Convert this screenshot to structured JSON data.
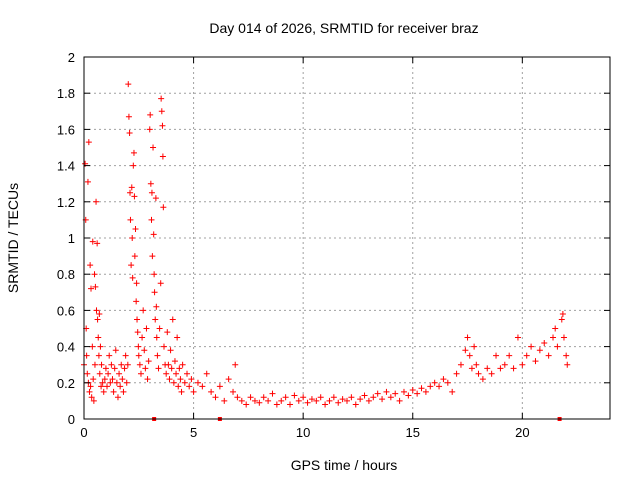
{
  "chart_data": {
    "type": "scatter",
    "title": "Day 014 of 2026, SRMTID for receiver braz",
    "xlabel": "GPS time / hours",
    "ylabel": "SRMTID / TECUs",
    "xlim": [
      0,
      24
    ],
    "ylim": [
      0,
      2
    ],
    "x_ticks": [
      0,
      5,
      10,
      15,
      20
    ],
    "x_tick_labels": [
      "0",
      "5",
      "10",
      "15",
      "20"
    ],
    "y_ticks": [
      0,
      0.2,
      0.4,
      0.6,
      0.8,
      1,
      1.2,
      1.4,
      1.6,
      1.8,
      2
    ],
    "y_tick_labels": [
      "0",
      "0.2",
      "0.4",
      "0.6",
      "0.8",
      "1",
      "1.2",
      "1.4",
      "1.6",
      "1.8",
      "2"
    ],
    "grid": true,
    "marker": "+",
    "series_color": "#ff0000",
    "series": [
      {
        "name": "SRMTID",
        "points": [
          [
            0.0,
            0.3
          ],
          [
            0.05,
            1.41
          ],
          [
            0.08,
            1.1
          ],
          [
            0.1,
            0.5
          ],
          [
            0.12,
            0.35
          ],
          [
            0.15,
            0.25
          ],
          [
            0.18,
            1.31
          ],
          [
            0.2,
            0.2
          ],
          [
            0.22,
            1.53
          ],
          [
            0.25,
            0.15
          ],
          [
            0.28,
            0.85
          ],
          [
            0.3,
            0.18
          ],
          [
            0.32,
            0.72
          ],
          [
            0.35,
            0.12
          ],
          [
            0.38,
            0.4
          ],
          [
            0.4,
            0.98
          ],
          [
            0.42,
            0.22
          ],
          [
            0.45,
            0.1
          ],
          [
            0.48,
            0.8
          ],
          [
            0.5,
            0.3
          ],
          [
            0.52,
            0.73
          ],
          [
            0.55,
            1.2
          ],
          [
            0.57,
            0.6
          ],
          [
            0.6,
            0.97
          ],
          [
            0.62,
            0.55
          ],
          [
            0.65,
            0.45
          ],
          [
            0.68,
            0.35
          ],
          [
            0.7,
            0.58
          ],
          [
            0.72,
            0.25
          ],
          [
            0.75,
            0.4
          ],
          [
            0.78,
            0.18
          ],
          [
            0.8,
            0.3
          ],
          [
            0.85,
            0.2
          ],
          [
            0.9,
            0.15
          ],
          [
            0.95,
            0.22
          ],
          [
            1.0,
            0.28
          ],
          [
            1.05,
            0.18
          ],
          [
            1.1,
            0.25
          ],
          [
            1.15,
            0.35
          ],
          [
            1.2,
            0.2
          ],
          [
            1.25,
            0.3
          ],
          [
            1.3,
            0.22
          ],
          [
            1.35,
            0.15
          ],
          [
            1.4,
            0.28
          ],
          [
            1.45,
            0.38
          ],
          [
            1.5,
            0.2
          ],
          [
            1.55,
            0.12
          ],
          [
            1.6,
            0.25
          ],
          [
            1.65,
            0.18
          ],
          [
            1.7,
            0.3
          ],
          [
            1.75,
            0.22
          ],
          [
            1.8,
            0.15
          ],
          [
            1.85,
            0.28
          ],
          [
            1.9,
            0.35
          ],
          [
            1.95,
            0.2
          ],
          [
            2.0,
            0.3
          ],
          [
            2.02,
            1.85
          ],
          [
            2.05,
            1.67
          ],
          [
            2.08,
            1.58
          ],
          [
            2.1,
            1.25
          ],
          [
            2.12,
            1.1
          ],
          [
            2.15,
            0.85
          ],
          [
            2.18,
            1.28
          ],
          [
            2.2,
            1.0
          ],
          [
            2.22,
            0.78
          ],
          [
            2.25,
            1.4
          ],
          [
            2.28,
            1.47
          ],
          [
            2.3,
            1.23
          ],
          [
            2.32,
            0.9
          ],
          [
            2.35,
            1.05
          ],
          [
            2.38,
            0.65
          ],
          [
            2.4,
            0.75
          ],
          [
            2.42,
            0.55
          ],
          [
            2.45,
            0.48
          ],
          [
            2.48,
            0.4
          ],
          [
            2.5,
            0.35
          ],
          [
            2.55,
            0.3
          ],
          [
            2.6,
            0.25
          ],
          [
            2.65,
            0.45
          ],
          [
            2.7,
            0.6
          ],
          [
            2.75,
            0.38
          ],
          [
            2.8,
            0.28
          ],
          [
            2.85,
            0.5
          ],
          [
            2.9,
            0.22
          ],
          [
            2.95,
            0.32
          ],
          [
            3.0,
            1.6
          ],
          [
            3.02,
            1.68
          ],
          [
            3.05,
            1.3
          ],
          [
            3.08,
            1.1
          ],
          [
            3.1,
            1.25
          ],
          [
            3.12,
            0.9
          ],
          [
            3.15,
            1.5
          ],
          [
            3.18,
            1.02
          ],
          [
            3.2,
            0.8
          ],
          [
            3.22,
            0.7
          ],
          [
            3.25,
            0.55
          ],
          [
            3.28,
            1.22
          ],
          [
            3.3,
            0.62
          ],
          [
            3.32,
            0.45
          ],
          [
            3.35,
            0.35
          ],
          [
            3.4,
            0.28
          ],
          [
            3.45,
            0.5
          ],
          [
            3.5,
            0.75
          ],
          [
            3.52,
            1.77
          ],
          [
            3.55,
            1.7
          ],
          [
            3.58,
            1.62
          ],
          [
            3.6,
            1.45
          ],
          [
            3.62,
            1.17
          ],
          [
            3.65,
            0.4
          ],
          [
            3.7,
            0.3
          ],
          [
            3.75,
            0.25
          ],
          [
            3.8,
            0.48
          ],
          [
            3.85,
            0.3
          ],
          [
            3.9,
            0.22
          ],
          [
            3.95,
            0.38
          ],
          [
            4.0,
            0.28
          ],
          [
            4.05,
            0.55
          ],
          [
            4.1,
            0.2
          ],
          [
            4.15,
            0.32
          ],
          [
            4.2,
            0.25
          ],
          [
            4.25,
            0.45
          ],
          [
            4.3,
            0.18
          ],
          [
            4.35,
            0.28
          ],
          [
            4.4,
            0.22
          ],
          [
            4.45,
            0.15
          ],
          [
            4.5,
            0.3
          ],
          [
            4.6,
            0.2
          ],
          [
            4.7,
            0.25
          ],
          [
            4.8,
            0.18
          ],
          [
            4.9,
            0.22
          ],
          [
            5.0,
            0.15
          ],
          [
            5.2,
            0.2
          ],
          [
            5.4,
            0.18
          ],
          [
            5.6,
            0.25
          ],
          [
            5.8,
            0.15
          ],
          [
            6.0,
            0.12
          ],
          [
            6.2,
            0.18
          ],
          [
            6.4,
            0.1
          ],
          [
            6.6,
            0.22
          ],
          [
            6.8,
            0.15
          ],
          [
            6.9,
            0.3
          ],
          [
            7.0,
            0.12
          ],
          [
            7.2,
            0.1
          ],
          [
            7.4,
            0.08
          ],
          [
            7.6,
            0.12
          ],
          [
            7.8,
            0.1
          ],
          [
            8.0,
            0.09
          ],
          [
            8.2,
            0.12
          ],
          [
            8.4,
            0.1
          ],
          [
            8.6,
            0.14
          ],
          [
            8.8,
            0.08
          ],
          [
            9.0,
            0.1
          ],
          [
            9.2,
            0.12
          ],
          [
            9.4,
            0.08
          ],
          [
            9.6,
            0.13
          ],
          [
            9.8,
            0.1
          ],
          [
            10.0,
            0.12
          ],
          [
            10.2,
            0.09
          ],
          [
            10.4,
            0.11
          ],
          [
            10.6,
            0.1
          ],
          [
            10.8,
            0.12
          ],
          [
            11.0,
            0.08
          ],
          [
            11.2,
            0.1
          ],
          [
            11.4,
            0.12
          ],
          [
            11.6,
            0.09
          ],
          [
            11.8,
            0.11
          ],
          [
            12.0,
            0.1
          ],
          [
            12.2,
            0.12
          ],
          [
            12.4,
            0.08
          ],
          [
            12.6,
            0.11
          ],
          [
            12.8,
            0.13
          ],
          [
            13.0,
            0.1
          ],
          [
            13.2,
            0.12
          ],
          [
            13.4,
            0.14
          ],
          [
            13.6,
            0.11
          ],
          [
            13.8,
            0.15
          ],
          [
            14.0,
            0.12
          ],
          [
            14.2,
            0.14
          ],
          [
            14.4,
            0.1
          ],
          [
            14.6,
            0.15
          ],
          [
            14.8,
            0.13
          ],
          [
            15.0,
            0.16
          ],
          [
            15.2,
            0.14
          ],
          [
            15.4,
            0.17
          ],
          [
            15.6,
            0.15
          ],
          [
            15.8,
            0.18
          ],
          [
            16.0,
            0.2
          ],
          [
            16.2,
            0.18
          ],
          [
            16.4,
            0.22
          ],
          [
            16.6,
            0.2
          ],
          [
            16.8,
            0.15
          ],
          [
            17.0,
            0.25
          ],
          [
            17.2,
            0.3
          ],
          [
            17.4,
            0.38
          ],
          [
            17.5,
            0.45
          ],
          [
            17.6,
            0.35
          ],
          [
            17.7,
            0.28
          ],
          [
            17.8,
            0.4
          ],
          [
            17.9,
            0.3
          ],
          [
            18.0,
            0.25
          ],
          [
            18.2,
            0.22
          ],
          [
            18.4,
            0.28
          ],
          [
            18.6,
            0.25
          ],
          [
            18.8,
            0.35
          ],
          [
            19.0,
            0.28
          ],
          [
            19.2,
            0.3
          ],
          [
            19.4,
            0.35
          ],
          [
            19.6,
            0.28
          ],
          [
            19.8,
            0.45
          ],
          [
            20.0,
            0.3
          ],
          [
            20.2,
            0.35
          ],
          [
            20.4,
            0.4
          ],
          [
            20.6,
            0.32
          ],
          [
            20.8,
            0.38
          ],
          [
            21.0,
            0.42
          ],
          [
            21.2,
            0.35
          ],
          [
            21.4,
            0.45
          ],
          [
            21.5,
            0.5
          ],
          [
            21.6,
            0.4
          ],
          [
            21.8,
            0.55
          ],
          [
            21.85,
            0.58
          ],
          [
            21.9,
            0.45
          ],
          [
            22.0,
            0.35
          ],
          [
            22.05,
            0.3
          ]
        ]
      }
    ],
    "gap_markers_x": [
      3.2,
      6.2,
      21.7
    ]
  }
}
